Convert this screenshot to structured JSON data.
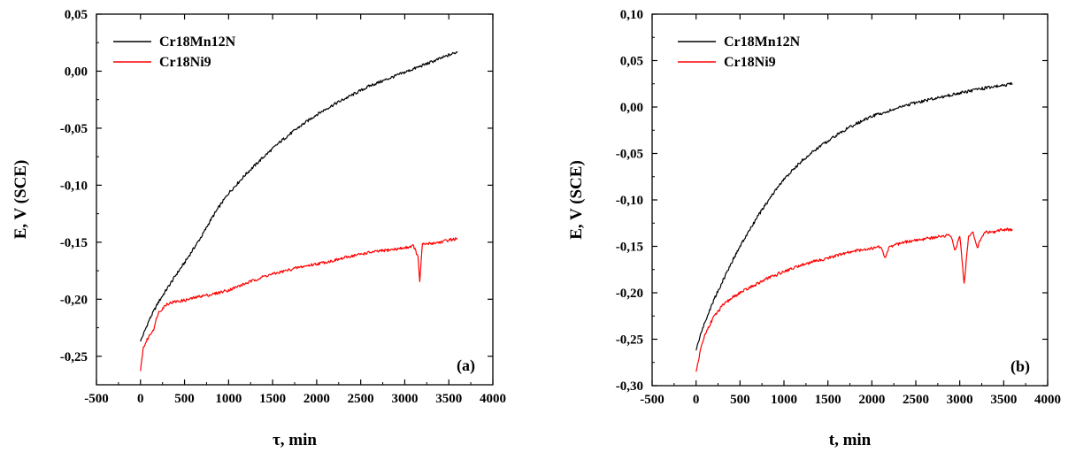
{
  "chart_data": [
    {
      "type": "line",
      "panel_label": "(a)",
      "xlabel": "τ, min",
      "ylabel": "E, V (SCE)",
      "xlim": [
        -500,
        4000
      ],
      "ylim": [
        -0.275,
        0.05
      ],
      "xticks": [
        -500,
        0,
        500,
        1000,
        1500,
        2000,
        2500,
        3000,
        3500,
        4000
      ],
      "xtick_labels": [
        "-500",
        "0",
        "500",
        "1000",
        "1500",
        "2000",
        "2500",
        "3000",
        "3500",
        "4000"
      ],
      "yticks": [
        0.05,
        0.0,
        -0.05,
        -0.1,
        -0.15,
        -0.2,
        -0.25
      ],
      "ytick_labels": [
        "0,05",
        "0,00",
        "-0,05",
        "-0,10",
        "-0,15",
        "-0,20",
        "-0,25"
      ],
      "legend_position": "top-left",
      "series": [
        {
          "name": "Cr18Mn12N",
          "color": "#000000",
          "x": [
            0,
            100,
            200,
            300,
            400,
            500,
            600,
            700,
            800,
            900,
            1000,
            1200,
            1400,
            1600,
            1800,
            2000,
            2200,
            2400,
            2600,
            2800,
            3000,
            3200,
            3400,
            3600
          ],
          "y": [
            -0.237,
            -0.218,
            -0.203,
            -0.191,
            -0.179,
            -0.168,
            -0.156,
            -0.144,
            -0.13,
            -0.118,
            -0.107,
            -0.09,
            -0.075,
            -0.061,
            -0.049,
            -0.038,
            -0.029,
            -0.021,
            -0.013,
            -0.007,
            -0.001,
            0.005,
            0.011,
            0.017
          ]
        },
        {
          "name": "Cr18Ni9",
          "color": "#ff0000",
          "x": [
            0,
            30,
            60,
            100,
            150,
            200,
            300,
            400,
            500,
            600,
            700,
            800,
            900,
            1000,
            1200,
            1400,
            1600,
            1800,
            2000,
            2200,
            2400,
            2600,
            2800,
            3000,
            3100,
            3150,
            3170,
            3200,
            3300,
            3400,
            3500,
            3600
          ],
          "y": [
            -0.263,
            -0.243,
            -0.238,
            -0.232,
            -0.226,
            -0.212,
            -0.204,
            -0.202,
            -0.201,
            -0.199,
            -0.197,
            -0.196,
            -0.194,
            -0.192,
            -0.186,
            -0.18,
            -0.176,
            -0.172,
            -0.169,
            -0.166,
            -0.162,
            -0.159,
            -0.157,
            -0.155,
            -0.153,
            -0.163,
            -0.184,
            -0.152,
            -0.151,
            -0.15,
            -0.148,
            -0.147
          ]
        }
      ]
    },
    {
      "type": "line",
      "panel_label": "(b)",
      "xlabel": "t, min",
      "ylabel": "E, V (SCE)",
      "xlim": [
        -500,
        4000
      ],
      "ylim": [
        -0.3,
        0.1
      ],
      "xticks": [
        -500,
        0,
        500,
        1000,
        1500,
        2000,
        2500,
        3000,
        3500,
        4000
      ],
      "xtick_labels": [
        "-500",
        "0",
        "500",
        "1000",
        "1500",
        "2000",
        "2500",
        "3000",
        "3500",
        "4000"
      ],
      "yticks": [
        0.1,
        0.05,
        0.0,
        -0.05,
        -0.1,
        -0.15,
        -0.2,
        -0.25,
        -0.3
      ],
      "ytick_labels": [
        "0,10",
        "0,05",
        "0,00",
        "-0,05",
        "-0,10",
        "-0,15",
        "-0,20",
        "-0,25",
        "-0,30"
      ],
      "legend_position": "top-left",
      "series": [
        {
          "name": "Cr18Mn12N",
          "color": "#000000",
          "x": [
            0,
            50,
            100,
            200,
            300,
            400,
            500,
            600,
            700,
            800,
            900,
            1000,
            1200,
            1400,
            1600,
            1800,
            2000,
            2200,
            2400,
            2600,
            2800,
            3000,
            3200,
            3400,
            3600
          ],
          "y": [
            -0.262,
            -0.245,
            -0.232,
            -0.208,
            -0.188,
            -0.168,
            -0.15,
            -0.134,
            -0.118,
            -0.104,
            -0.09,
            -0.078,
            -0.058,
            -0.043,
            -0.03,
            -0.019,
            -0.01,
            -0.004,
            0.002,
            0.007,
            0.011,
            0.015,
            0.019,
            0.022,
            0.025
          ]
        },
        {
          "name": "Cr18Ni9",
          "color": "#ff0000",
          "x": [
            0,
            50,
            100,
            200,
            300,
            400,
            500,
            600,
            700,
            800,
            1000,
            1200,
            1400,
            1600,
            1800,
            2000,
            2100,
            2150,
            2200,
            2400,
            2600,
            2800,
            2900,
            2950,
            3000,
            3050,
            3100,
            3150,
            3200,
            3250,
            3300,
            3400,
            3500,
            3600
          ],
          "y": [
            -0.285,
            -0.262,
            -0.245,
            -0.226,
            -0.214,
            -0.206,
            -0.2,
            -0.195,
            -0.19,
            -0.185,
            -0.177,
            -0.17,
            -0.165,
            -0.16,
            -0.155,
            -0.152,
            -0.15,
            -0.163,
            -0.15,
            -0.145,
            -0.142,
            -0.139,
            -0.138,
            -0.155,
            -0.138,
            -0.19,
            -0.14,
            -0.136,
            -0.152,
            -0.139,
            -0.135,
            -0.134,
            -0.132,
            -0.132
          ]
        }
      ]
    }
  ]
}
